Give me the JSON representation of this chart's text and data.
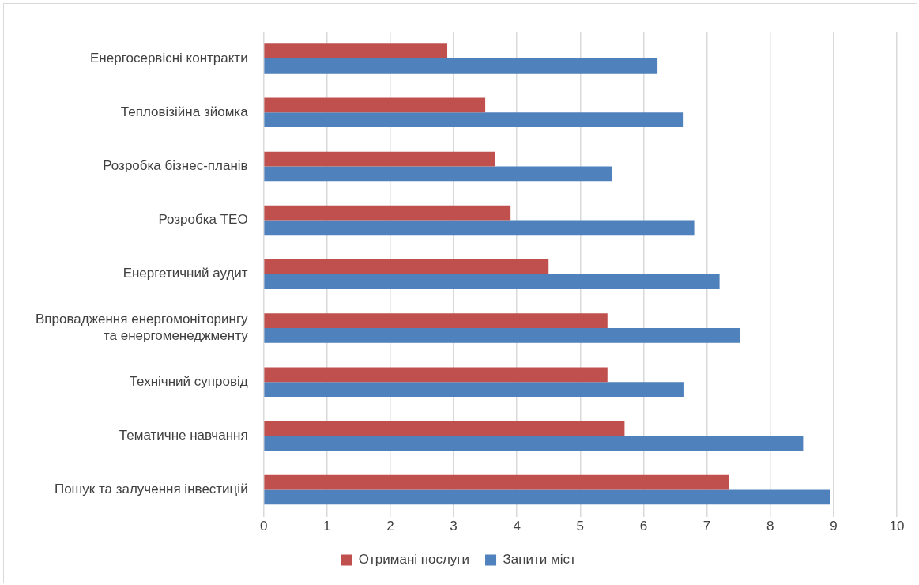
{
  "chart_data": {
    "type": "bar",
    "orientation": "horizontal",
    "categories": [
      "Енергосервісні контракти",
      "Тепловізійна зйомка",
      "Розробка бізнес-планів",
      "Розробка ТЕО",
      "Енергетичний аудит",
      "Впровадження енергомоніторингу та енергоменеджменту",
      "Технічний супровід",
      "Тематичне навчання",
      "Пошук та залучення інвестицій"
    ],
    "series": [
      {
        "name": "Отримані послуги",
        "color": "#c0504d",
        "values": [
          2.9,
          3.5,
          3.65,
          3.9,
          4.5,
          5.43,
          5.43,
          5.7,
          7.35
        ]
      },
      {
        "name": "Запити міст",
        "color": "#4f81bd",
        "values": [
          6.22,
          6.62,
          5.5,
          6.8,
          7.2,
          7.52,
          6.63,
          8.52,
          8.95
        ]
      }
    ],
    "xlim": [
      0,
      10
    ],
    "xticks": [
      0,
      1,
      2,
      3,
      4,
      5,
      6,
      7,
      8,
      9,
      10
    ],
    "grid": "x",
    "legend": "bottom"
  }
}
